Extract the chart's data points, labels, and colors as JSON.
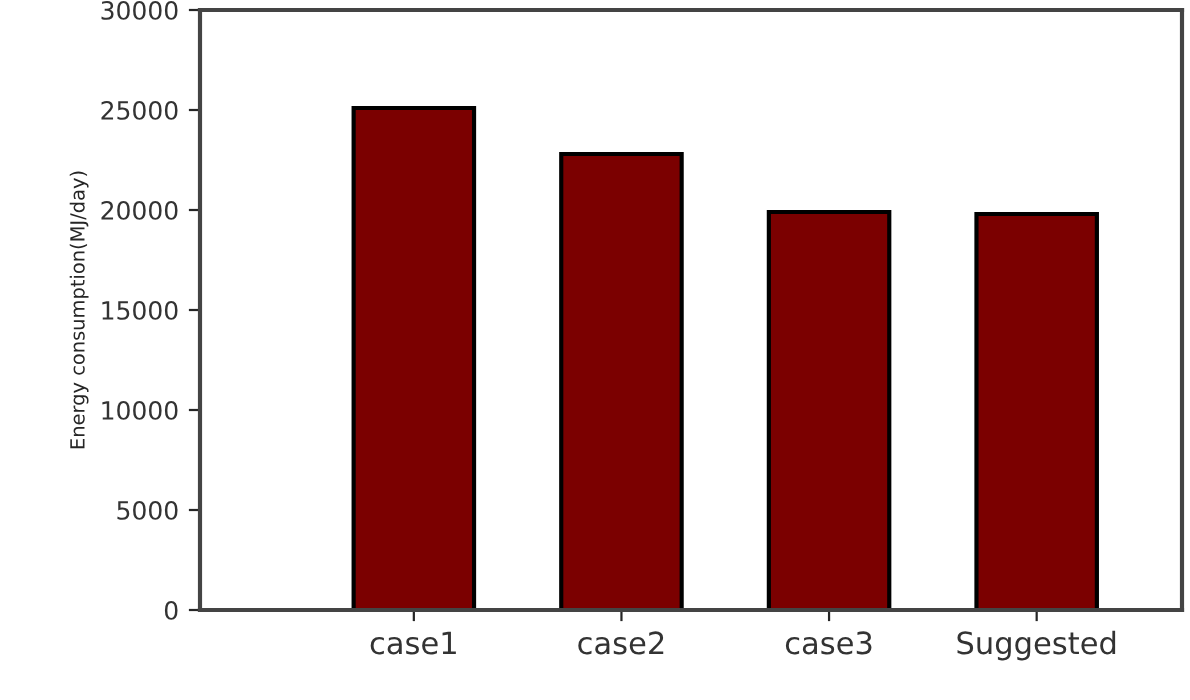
{
  "chart_data": {
    "type": "bar",
    "ylabel": "Energy consumption(MJ/day)",
    "categories": [
      "case1",
      "case2",
      "case3",
      "Suggested"
    ],
    "values": [
      25100,
      22800,
      19900,
      19800
    ],
    "color": "#7b0000",
    "ylim": [
      0,
      30000
    ],
    "yticks": [
      0,
      5000,
      10000,
      15000,
      20000,
      25000,
      30000
    ],
    "grid": false
  }
}
